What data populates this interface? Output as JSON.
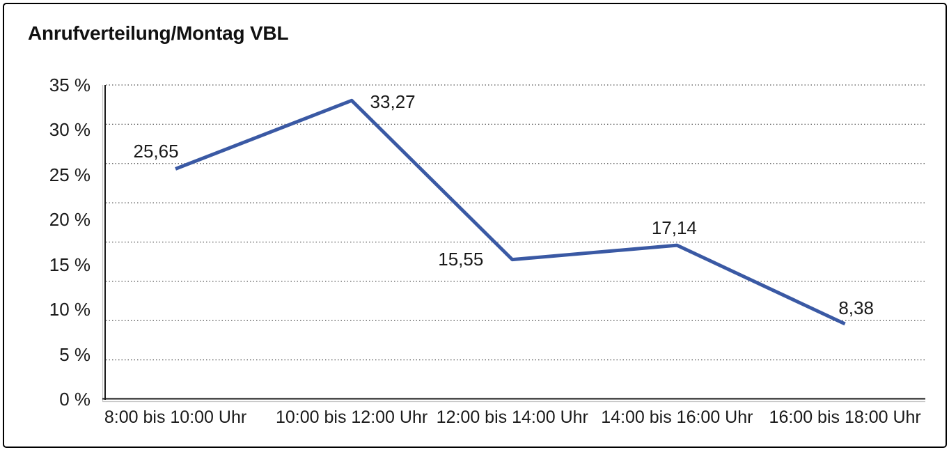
{
  "chart_data": {
    "type": "line",
    "title": "Anrufverteilung/Montag VBL",
    "categories": [
      "8:00 bis 10:00 Uhr",
      "10:00 bis 12:00 Uhr",
      "12:00 bis 14:00 Uhr",
      "14:00 bis 16:00 Uhr",
      "16:00 bis 18:00 Uhr"
    ],
    "values": [
      25.65,
      33.27,
      15.55,
      17.14,
      8.38
    ],
    "point_labels": [
      "25,65",
      "33,27",
      "15,55",
      "17,14",
      "8,38"
    ],
    "y_ticks": [
      {
        "label": "35 %",
        "value": 35
      },
      {
        "label": "30 %",
        "value": 30
      },
      {
        "label": "25 %",
        "value": 25
      },
      {
        "label": "20 %",
        "value": 20
      },
      {
        "label": "15 %",
        "value": 15
      },
      {
        "label": "10 %",
        "value": 10
      },
      {
        "label": "5 %",
        "value": 5
      },
      {
        "label": "0 %",
        "value": 0
      }
    ],
    "ylim": [
      0,
      35
    ],
    "xlabel": "",
    "ylabel": "",
    "legend_position": "none",
    "grid": "horizontal-dotted",
    "line_color": "#3A59A4",
    "axis_color": "#1a1a1a",
    "grid_color": "#555555"
  }
}
